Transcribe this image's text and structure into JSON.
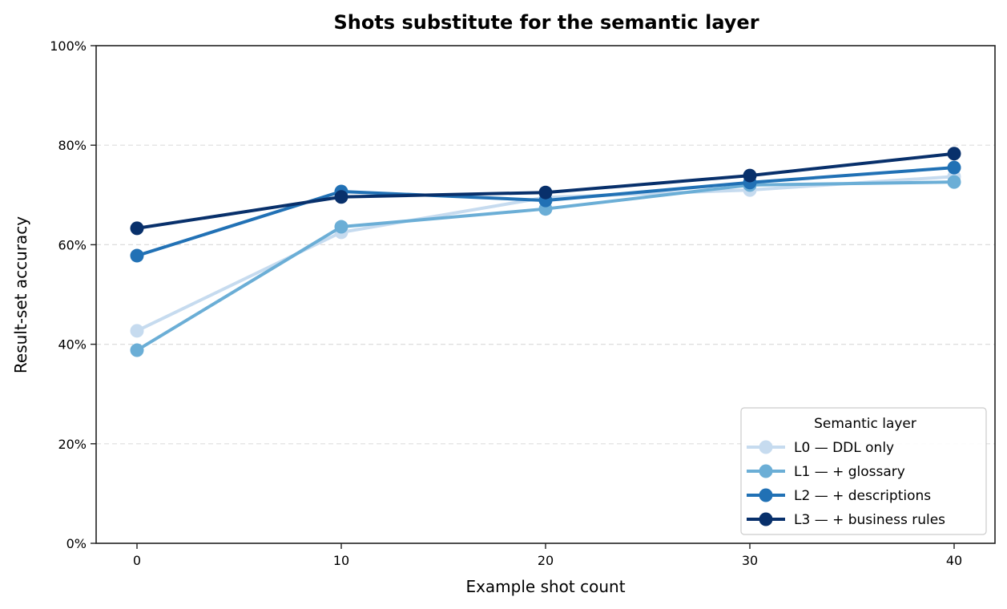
{
  "chart_data": {
    "type": "line",
    "title": "Shots substitute for the semantic layer",
    "xlabel": "Example shot count",
    "ylabel": "Result-set accuracy",
    "x": [
      0,
      10,
      20,
      30,
      40
    ],
    "xlim": [
      -2,
      42
    ],
    "ylim": [
      0,
      100
    ],
    "x_ticks": [
      "0",
      "10",
      "20",
      "30",
      "40"
    ],
    "y_ticks": [
      "0%",
      "20%",
      "40%",
      "60%",
      "80%",
      "100%"
    ],
    "y_tick_values": [
      0,
      20,
      40,
      60,
      80,
      100
    ],
    "grid": "y-dashed",
    "legend": {
      "title": "Semantic layer",
      "position": "lower right"
    },
    "series": [
      {
        "name": "L0 — DDL only",
        "color": "#c6dbef",
        "values": [
          42.7,
          62.5,
          69.5,
          71.0,
          73.7
        ]
      },
      {
        "name": "L1 — + glossary",
        "color": "#6baed6",
        "values": [
          38.8,
          63.6,
          67.2,
          72.0,
          72.6
        ]
      },
      {
        "name": "L2 — + descriptions",
        "color": "#2171b5",
        "values": [
          57.8,
          70.7,
          68.9,
          72.5,
          75.5
        ]
      },
      {
        "name": "L3 — + business rules",
        "color": "#08306b",
        "values": [
          63.3,
          69.6,
          70.5,
          73.9,
          78.3
        ]
      }
    ]
  }
}
